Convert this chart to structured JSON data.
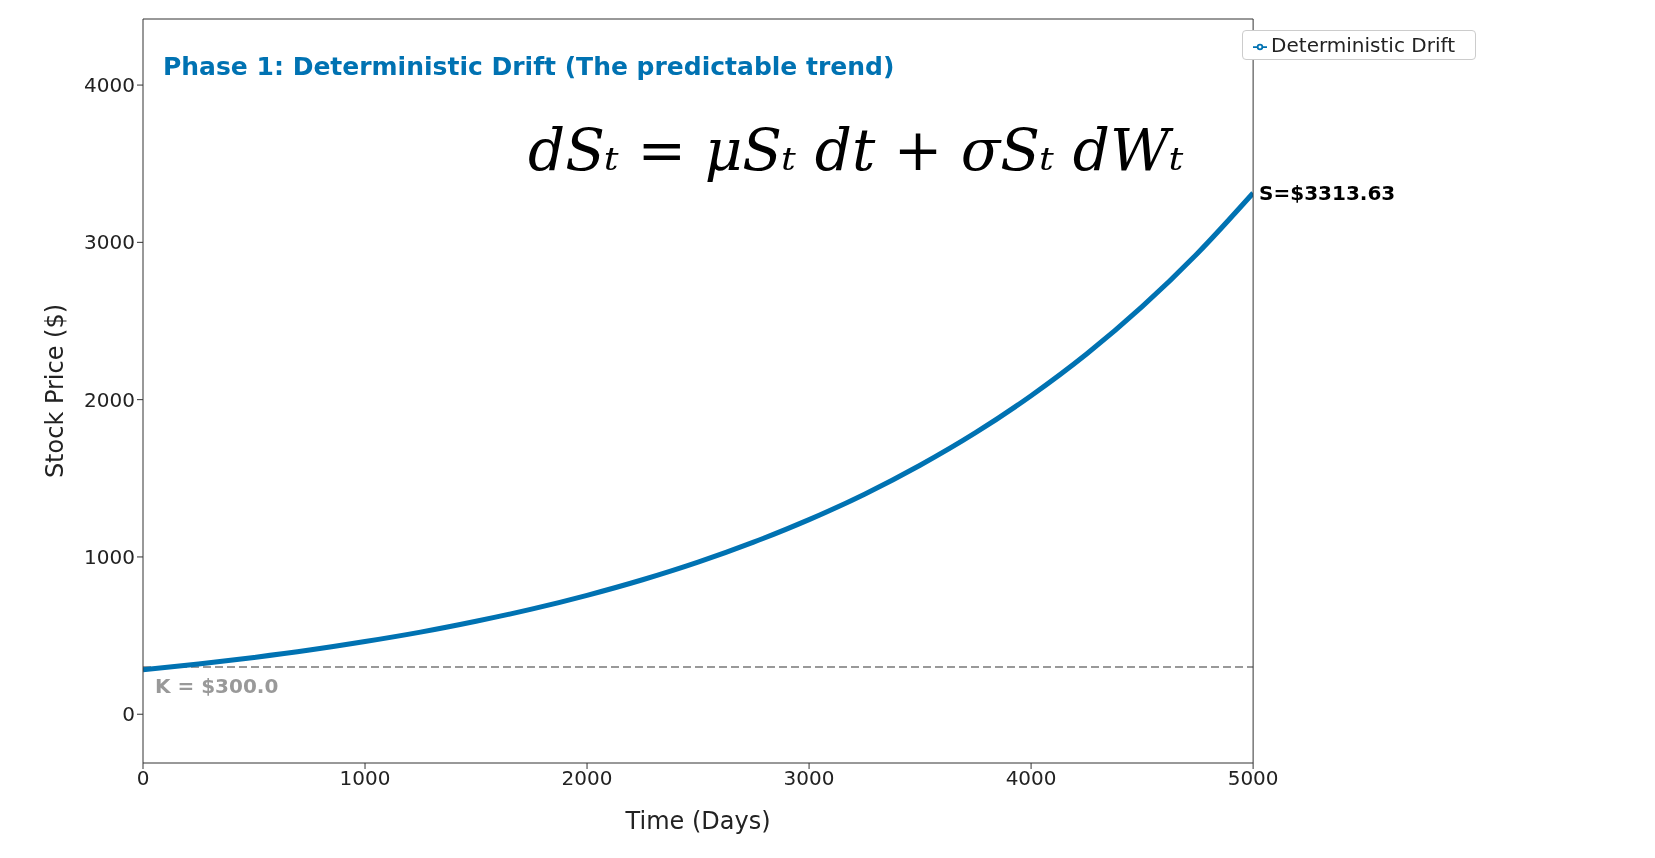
{
  "chart_data": {
    "type": "line",
    "title": "Phase 1: Deterministic Drift (The predictable trend)",
    "xlabel": "Time (Days)",
    "ylabel": "Stock Price ($)",
    "x": [
      0,
      250,
      500,
      750,
      1000,
      1250,
      1500,
      1750,
      2000,
      2250,
      2500,
      2750,
      3000,
      3250,
      3500,
      3750,
      4000,
      4250,
      4500,
      4750,
      5000
    ],
    "series": [
      {
        "name": "Deterministic Drift",
        "color": "#0072b2",
        "values": [
          282,
          319,
          361,
          408,
          462,
          522,
          591,
          668,
          756,
          855,
          967,
          1094,
          1237,
          1399,
          1583,
          1790,
          2025,
          2290,
          2591,
          2931,
          3313.63
        ]
      }
    ],
    "xlim": [
      0,
      5000
    ],
    "xticks": [
      0,
      1000,
      2000,
      3000,
      4000,
      5000
    ],
    "ylim": [
      -310,
      4420
    ],
    "yticks": [
      0,
      1000,
      2000,
      3000,
      4000
    ],
    "ref_lines": [
      {
        "axis": "y",
        "value": 300,
        "label": "K = $300.0",
        "color": "#999999",
        "line_style": "dashed"
      }
    ],
    "annotations": [
      "dSₜ = μSₜ dt + σSₜ dWₜ",
      {
        "text": "S=$3313.63",
        "x": 5000,
        "y": 3313.63
      }
    ],
    "legend": "top right",
    "grid": false,
    "marker": "none",
    "line_style": "solid"
  }
}
